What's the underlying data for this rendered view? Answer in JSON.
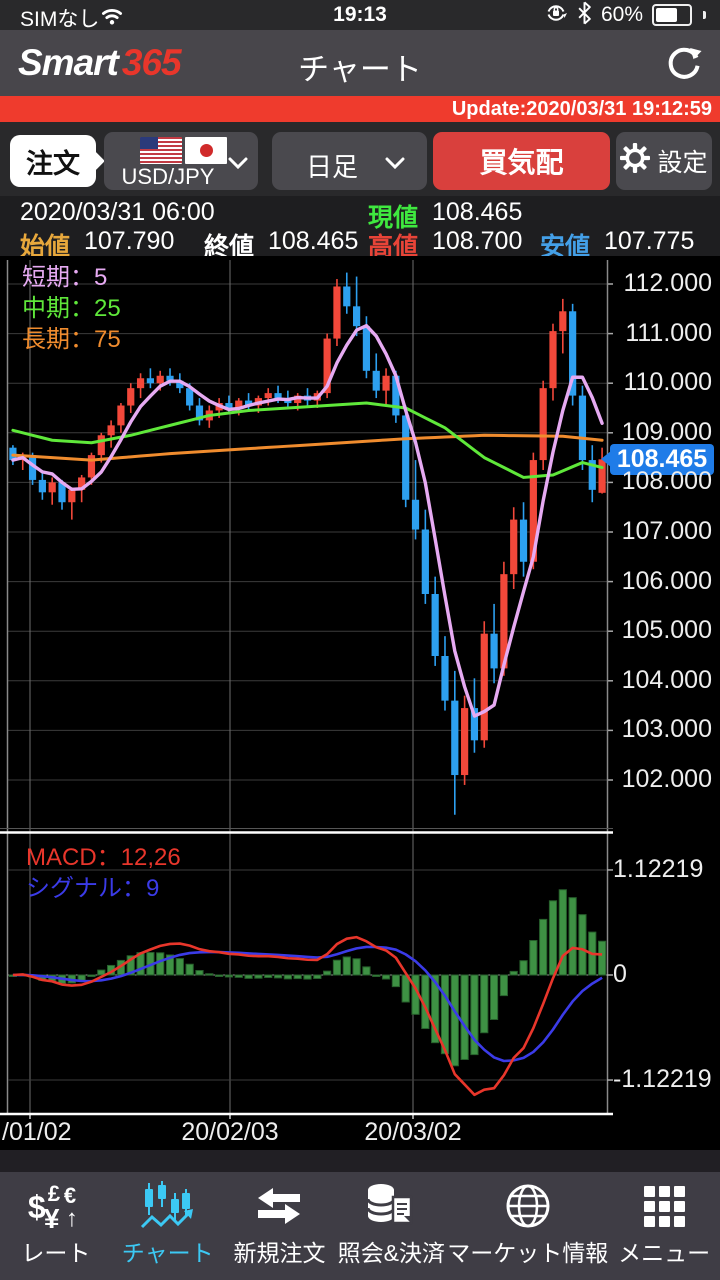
{
  "theme": {
    "accent_red": "#ef3b2d",
    "button_red": "#d9403d",
    "badge_blue": "#1f7ce8",
    "nav_active_cyan": "#3cc9f4",
    "candle_up": "#f2483a",
    "candle_down": "#2da0f0"
  },
  "status_bar": {
    "carrier": "SIMなし",
    "time": "19:13",
    "battery_percent": "60%"
  },
  "header": {
    "logo_smart": "Smart",
    "logo_365": "365",
    "title": "チャート"
  },
  "update_bar": {
    "text": "Update:2020/03/31 19:12:59"
  },
  "toolbar": {
    "order_label": "注文",
    "pair_label": "USD/JPY",
    "timeframe_label": "日足",
    "bid_ask_label": "買気配",
    "settings_label": "設定"
  },
  "quote": {
    "datetime": "2020/03/31 06:00",
    "current_label": "現値",
    "current": "108.465",
    "open_label": "始値",
    "open": "107.790",
    "close_label": "終値",
    "close": "108.465",
    "high_label": "高値",
    "high": "108.700",
    "low_label": "安値",
    "low": "107.775"
  },
  "chart_data": {
    "type": "candlestick",
    "pair": "USD/JPY",
    "timeframe": "日足",
    "legend": [
      {
        "label": "短期：5",
        "color": "#e6aaf2"
      },
      {
        "label": "中期：25",
        "color": "#5fe83a"
      },
      {
        "label": "長期：75",
        "color": "#f08c2e"
      }
    ],
    "y_axis": {
      "ticks": [
        "112.000",
        "111.000",
        "110.000",
        "109.000",
        "108.000",
        "107.000",
        "106.000",
        "105.000",
        "104.000",
        "103.000",
        "102.000"
      ],
      "tick_values": [
        112,
        111,
        110,
        109,
        108,
        107,
        106,
        105,
        104,
        103,
        102
      ],
      "ylim": [
        101.0,
        112.5
      ],
      "current_price": "108.465",
      "current_price_value": 108.465
    },
    "x_axis": {
      "labels": [
        {
          "text": "/01/02",
          "x": 2,
          "align": "left"
        },
        {
          "text": "20/02/03",
          "x": 230,
          "align": "center"
        },
        {
          "text": "20/03/02",
          "x": 413,
          "align": "center"
        }
      ],
      "gridline_x": [
        30,
        230,
        413
      ]
    },
    "candles": [
      [
        108.7,
        108.75,
        108.35,
        108.45
      ],
      [
        108.45,
        108.6,
        108.25,
        108.55
      ],
      [
        108.55,
        108.6,
        107.95,
        108.05
      ],
      [
        108.05,
        108.2,
        107.65,
        107.8
      ],
      [
        107.8,
        108.1,
        107.55,
        108.0
      ],
      [
        108.0,
        108.05,
        107.45,
        107.6
      ],
      [
        107.6,
        107.9,
        107.25,
        107.85
      ],
      [
        107.85,
        108.15,
        107.6,
        108.1
      ],
      [
        108.1,
        108.6,
        107.95,
        108.55
      ],
      [
        108.55,
        109.0,
        108.4,
        108.95
      ],
      [
        108.95,
        109.25,
        108.7,
        109.15
      ],
      [
        109.15,
        109.6,
        109.0,
        109.55
      ],
      [
        109.55,
        110.0,
        109.4,
        109.9
      ],
      [
        109.9,
        110.2,
        109.7,
        110.1
      ],
      [
        110.1,
        110.3,
        109.9,
        110.0
      ],
      [
        110.0,
        110.25,
        109.85,
        110.15
      ],
      [
        110.15,
        110.3,
        109.95,
        110.05
      ],
      [
        110.05,
        110.2,
        109.8,
        109.9
      ],
      [
        109.9,
        110.0,
        109.45,
        109.55
      ],
      [
        109.55,
        109.7,
        109.15,
        109.25
      ],
      [
        109.25,
        109.55,
        109.1,
        109.45
      ],
      [
        109.45,
        109.7,
        109.3,
        109.6
      ],
      [
        109.6,
        109.75,
        109.4,
        109.5
      ],
      [
        109.5,
        109.7,
        109.35,
        109.65
      ],
      [
        109.65,
        109.8,
        109.45,
        109.55
      ],
      [
        109.55,
        109.75,
        109.4,
        109.7
      ],
      [
        109.7,
        109.9,
        109.55,
        109.8
      ],
      [
        109.8,
        109.95,
        109.6,
        109.7
      ],
      [
        109.7,
        109.85,
        109.5,
        109.6
      ],
      [
        109.6,
        109.8,
        109.45,
        109.75
      ],
      [
        109.75,
        109.9,
        109.55,
        109.65
      ],
      [
        109.65,
        109.85,
        109.5,
        109.8
      ],
      [
        109.8,
        111.0,
        109.7,
        110.9
      ],
      [
        110.9,
        112.1,
        110.75,
        111.95
      ],
      [
        111.95,
        112.23,
        111.4,
        111.55
      ],
      [
        111.55,
        112.15,
        110.95,
        111.15
      ],
      [
        111.15,
        111.35,
        110.1,
        110.25
      ],
      [
        110.25,
        110.6,
        109.7,
        109.85
      ],
      [
        109.85,
        110.3,
        109.55,
        110.15
      ],
      [
        110.15,
        110.25,
        109.2,
        109.35
      ],
      [
        109.35,
        109.55,
        107.5,
        107.65
      ],
      [
        107.65,
        108.45,
        106.85,
        107.05
      ],
      [
        107.05,
        107.45,
        105.55,
        105.75
      ],
      [
        105.75,
        106.1,
        104.3,
        104.5
      ],
      [
        104.5,
        104.9,
        103.4,
        103.6
      ],
      [
        103.6,
        104.2,
        101.3,
        102.1
      ],
      [
        102.1,
        103.7,
        101.9,
        103.45
      ],
      [
        103.45,
        104.05,
        102.55,
        102.8
      ],
      [
        102.8,
        105.2,
        102.65,
        104.95
      ],
      [
        104.95,
        105.55,
        103.95,
        104.25
      ],
      [
        104.25,
        106.4,
        104.1,
        106.15
      ],
      [
        106.15,
        107.5,
        105.85,
        107.25
      ],
      [
        107.25,
        107.6,
        106.1,
        106.4
      ],
      [
        106.4,
        108.6,
        106.25,
        108.45
      ],
      [
        108.45,
        110.05,
        108.25,
        109.9
      ],
      [
        109.9,
        111.2,
        109.65,
        111.05
      ],
      [
        111.05,
        111.7,
        110.6,
        111.45
      ],
      [
        111.45,
        111.6,
        109.55,
        109.75
      ],
      [
        109.75,
        109.95,
        108.25,
        108.45
      ],
      [
        108.45,
        108.75,
        107.6,
        107.85
      ],
      [
        107.79,
        108.7,
        107.775,
        108.465
      ]
    ],
    "up_color": "#f2483a",
    "down_color": "#2da0f0",
    "ma": {
      "short": {
        "period": 5,
        "color": "#e6aaf2"
      },
      "mid": {
        "period": 25,
        "color": "#5fe83a",
        "points": [
          [
            0,
            109.05
          ],
          [
            4,
            108.85
          ],
          [
            8,
            108.8
          ],
          [
            12,
            108.95
          ],
          [
            16,
            109.15
          ],
          [
            20,
            109.35
          ],
          [
            24,
            109.45
          ],
          [
            28,
            109.5
          ],
          [
            32,
            109.55
          ],
          [
            36,
            109.6
          ],
          [
            40,
            109.5
          ],
          [
            44,
            109.1
          ],
          [
            48,
            108.5
          ],
          [
            52,
            108.1
          ],
          [
            55,
            108.15
          ],
          [
            58,
            108.4
          ],
          [
            60,
            108.3
          ]
        ]
      },
      "long": {
        "period": 75,
        "color": "#f08c2e",
        "points": [
          [
            0,
            108.55
          ],
          [
            8,
            108.45
          ],
          [
            16,
            108.58
          ],
          [
            24,
            108.68
          ],
          [
            32,
            108.78
          ],
          [
            40,
            108.88
          ],
          [
            48,
            108.95
          ],
          [
            56,
            108.93
          ],
          [
            60,
            108.85
          ]
        ]
      }
    },
    "macd_panel": {
      "macd_label": "MACD：12,26",
      "signal_label": "シグナル：9",
      "params": {
        "fast": 12,
        "slow": 26,
        "signal": 9
      },
      "macd_color": "#e8362b",
      "signal_color": "#3b3be8",
      "hist_color": "#3e9144",
      "y_ticks": [
        {
          "text": "1.12219",
          "value": 1.12219
        },
        {
          "text": "0",
          "value": 0
        },
        {
          "text": "-1.12219",
          "value": -1.12219
        }
      ]
    }
  },
  "nav": {
    "items": [
      {
        "label": "レート",
        "active": false
      },
      {
        "label": "チャート",
        "active": true
      },
      {
        "label": "新規注文",
        "active": false
      },
      {
        "label": "照会&決済",
        "active": false
      },
      {
        "label": "マーケット情報",
        "active": false
      },
      {
        "label": "メニュー",
        "active": false
      }
    ]
  }
}
